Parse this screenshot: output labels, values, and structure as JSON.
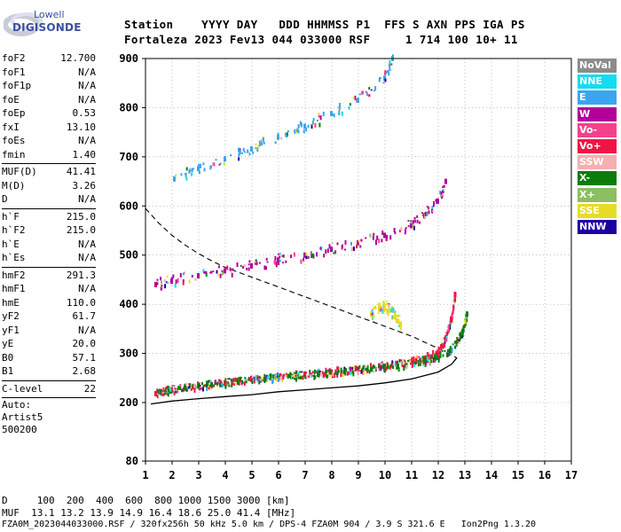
{
  "logo": {
    "line1": "Lowell",
    "line2": "DIGISONDE"
  },
  "header": {
    "labels": "Station    YYYY DAY   DDD HHMMSS P1  FFS S AXN PPS IGA PS",
    "values": "Fortaleza 2023 Fev13 044 033000 RSF     1 714 100 10+ 11"
  },
  "params_group1": [
    {
      "k": "foF2",
      "v": "12.700"
    },
    {
      "k": "foF1",
      "v": "N/A"
    },
    {
      "k": "foF1p",
      "v": "N/A"
    },
    {
      "k": "foE",
      "v": "N/A"
    },
    {
      "k": "foEp",
      "v": "0.53"
    },
    {
      "k": "fxI",
      "v": "13.10"
    },
    {
      "k": "foEs",
      "v": "N/A"
    },
    {
      "k": "fmin",
      "v": "1.40"
    }
  ],
  "params_group2": [
    {
      "k": "MUF(D)",
      "v": "41.41"
    },
    {
      "k": "M(D)",
      "v": "3.26"
    },
    {
      "k": "D",
      "v": "N/A"
    }
  ],
  "params_group3": [
    {
      "k": "h`F",
      "v": "215.0"
    },
    {
      "k": "h`F2",
      "v": "215.0"
    },
    {
      "k": "h`E",
      "v": "N/A"
    },
    {
      "k": "h`Es",
      "v": "N/A"
    }
  ],
  "params_group4": [
    {
      "k": "hmF2",
      "v": "291.3"
    },
    {
      "k": "hmF1",
      "v": "N/A"
    },
    {
      "k": "hmE",
      "v": "110.0"
    },
    {
      "k": "yF2",
      "v": "61.7"
    },
    {
      "k": "yF1",
      "v": "N/A"
    },
    {
      "k": "yE",
      "v": "20.0"
    },
    {
      "k": "B0",
      "v": "57.1"
    },
    {
      "k": "B1",
      "v": "2.68"
    }
  ],
  "params_group5": [
    {
      "k": "C-level",
      "v": "22"
    }
  ],
  "auto": {
    "line1": "Auto:",
    "line2": "Artist5",
    "line3": "500200"
  },
  "legend": [
    {
      "label": "NoVal",
      "color": "#8c8c8c"
    },
    {
      "label": "NNE",
      "color": "#14dcf0"
    },
    {
      "label": "E",
      "color": "#3ca5f0"
    },
    {
      "label": "W",
      "color": "#b4009b"
    },
    {
      "label": "Vo-",
      "color": "#f5418c"
    },
    {
      "label": "Vo+",
      "color": "#f01446"
    },
    {
      "label": "SSW",
      "color": "#f5afaf"
    },
    {
      "label": "X-",
      "color": "#0a7d0a"
    },
    {
      "label": "X+",
      "color": "#8cbe64"
    },
    {
      "label": "SSE",
      "color": "#e6dc28"
    },
    {
      "label": "NNW",
      "color": "#1e00a0"
    }
  ],
  "footer": {
    "d_row": "D     100  200  400  600  800 1000 1500 3000 [km]",
    "muf_row": "MUF  13.1 13.2 13.9 14.9 16.4 18.6 25.0 41.4 [MHz]",
    "file_row": "FZA0M_2023044033000.RSF / 320fx256h 50 kHz 5.0 km / DPS-4 FZA0M 904 / 3.9 S 321.6 E   Ion2Png 1.3.20"
  },
  "chart_data": {
    "type": "scatter",
    "x_ticks": [
      "1",
      "2",
      "3",
      "4",
      "5",
      "6",
      "7",
      "8",
      "9",
      "10",
      "11",
      "12",
      "13",
      "14",
      "15",
      "16",
      "17"
    ],
    "y_ticks": [
      "80",
      "200",
      "300",
      "400",
      "500",
      "600",
      "700",
      "800",
      "900"
    ],
    "xlim": [
      1,
      17
    ],
    "ylim": [
      80,
      900
    ],
    "grid": true,
    "series": [
      {
        "name": "ionogram-trace-O (1st hop)",
        "color": "#f01446",
        "x": [
          1.4,
          2,
          3,
          4,
          5,
          6,
          7,
          8,
          9,
          10,
          11,
          11.5,
          12,
          12.3,
          12.5,
          12.65
        ],
        "y": [
          218,
          226,
          234,
          240,
          247,
          252,
          258,
          262,
          268,
          274,
          282,
          290,
          302,
          330,
          370,
          420
        ]
      },
      {
        "name": "ionogram-trace-X (1st hop)",
        "color": "#0a7d0a",
        "x": [
          1.6,
          2.5,
          3.5,
          4.5,
          5.5,
          6.5,
          7.5,
          8.5,
          9.5,
          10.5,
          11.5,
          12,
          12.5,
          12.9,
          13.1
        ],
        "y": [
          222,
          230,
          236,
          242,
          248,
          253,
          258,
          263,
          268,
          274,
          284,
          292,
          306,
          340,
          380
        ]
      },
      {
        "name": "ionogram-trace-2nd-hop",
        "color": "#b4009b",
        "x": [
          1.4,
          2,
          3,
          4,
          5,
          6,
          7,
          8,
          9,
          10,
          11,
          11.5,
          12,
          12.3
        ],
        "y": [
          440,
          447,
          458,
          468,
          478,
          490,
          500,
          512,
          525,
          540,
          560,
          580,
          610,
          650
        ]
      },
      {
        "name": "ionogram-trace-3rd-hop",
        "color": "#3ca5f0",
        "x": [
          2.1,
          3,
          4,
          5,
          6,
          7,
          8,
          9,
          10,
          10.3
        ],
        "y": [
          655,
          676,
          696,
          716,
          740,
          762,
          788,
          815,
          860,
          900
        ]
      },
      {
        "name": "ionogram-trace-sporadic",
        "color": "#e6dc28",
        "x": [
          9.5,
          9.8,
          10,
          10.2,
          10.4,
          10.6
        ],
        "y": [
          380,
          392,
          395,
          388,
          375,
          360
        ]
      }
    ],
    "profile_curve": {
      "x": [
        1.2,
        2,
        3,
        4,
        5,
        6,
        7,
        8,
        9,
        10,
        11,
        12,
        12.5,
        12.7
      ],
      "y": [
        197,
        203,
        208,
        212,
        216,
        222,
        226,
        230,
        234,
        240,
        248,
        262,
        278,
        291
      ]
    },
    "dashed_curve": {
      "x": [
        1,
        1.5,
        2,
        2.5,
        3,
        3.5,
        4,
        5,
        6,
        7,
        8,
        9,
        10,
        11,
        12,
        12.7
      ],
      "y": [
        595,
        565,
        540,
        520,
        503,
        488,
        475,
        455,
        435,
        415,
        395,
        375,
        355,
        335,
        310,
        291
      ]
    }
  }
}
